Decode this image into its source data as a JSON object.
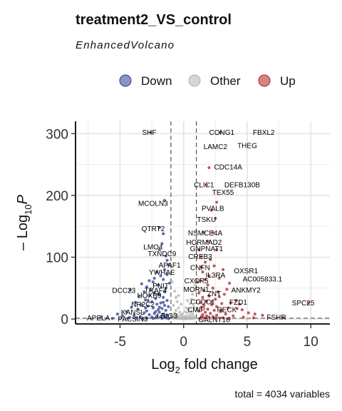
{
  "chart_data": {
    "type": "scatter",
    "title": "treatment2_VS_control",
    "subtitle": "EnhancedVolcano",
    "caption": "total = 4034 variables",
    "xlabel": {
      "main": "Log",
      "sub": "2",
      "rest": " fold change"
    },
    "ylabel": {
      "pre": "– Log",
      "sub": "10",
      "italic": "P"
    },
    "xlim": [
      -8.5,
      11.5
    ],
    "ylim": [
      -8,
      320
    ],
    "xticks": [
      "-5",
      "0",
      "5",
      "10"
    ],
    "xtick_values": [
      -5,
      0,
      5,
      10
    ],
    "yticks": [
      "0",
      "100",
      "200",
      "300"
    ],
    "ytick_values": [
      0,
      100,
      200,
      300
    ],
    "fc_cutoff": 1,
    "p_cutoff_y": 1.3,
    "grid": true,
    "legend_position": "top",
    "legend": [
      {
        "name": "Down",
        "color": "#2a3e8c"
      },
      {
        "name": "Other",
        "color": "#b3b3b3"
      },
      {
        "name": "Up",
        "color": "#b11f24"
      }
    ],
    "labels": [
      {
        "text": "SHF",
        "x": -2.7,
        "y": 302
      },
      {
        "text": "CONG1",
        "x": 3.0,
        "y": 302
      },
      {
        "text": "FBXL2",
        "x": 6.3,
        "y": 302
      },
      {
        "text": "LAMC2",
        "x": 2.5,
        "y": 279
      },
      {
        "text": "THEG",
        "x": 5.0,
        "y": 281
      },
      {
        "text": "CDC14A",
        "x": 3.5,
        "y": 246
      },
      {
        "text": "CLIC1",
        "x": 1.6,
        "y": 217
      },
      {
        "text": "DEFB130B",
        "x": 4.6,
        "y": 217
      },
      {
        "text": "TEX55",
        "x": 3.1,
        "y": 205
      },
      {
        "text": "MCOLN3",
        "x": -2.4,
        "y": 187
      },
      {
        "text": "PVALB",
        "x": 2.3,
        "y": 179
      },
      {
        "text": "TSKU",
        "x": 1.8,
        "y": 161
      },
      {
        "text": "QTRT2",
        "x": -2.4,
        "y": 146
      },
      {
        "text": "NSMCE4A",
        "x": 1.7,
        "y": 139
      },
      {
        "text": "HORMAD2",
        "x": 1.6,
        "y": 124
      },
      {
        "text": "LMO4",
        "x": -2.4,
        "y": 117
      },
      {
        "text": "GNPNAT1",
        "x": 1.8,
        "y": 114
      },
      {
        "text": "TXNDC9",
        "x": -1.7,
        "y": 106
      },
      {
        "text": "CREB3",
        "x": 1.3,
        "y": 101
      },
      {
        "text": "APAF1",
        "x": -1.1,
        "y": 87
      },
      {
        "text": "CNFN",
        "x": 1.3,
        "y": 83
      },
      {
        "text": "OXSR1",
        "x": 4.9,
        "y": 78
      },
      {
        "text": "YWHAE",
        "x": -1.7,
        "y": 76
      },
      {
        "text": "IL3RA",
        "x": 2.5,
        "y": 71
      },
      {
        "text": "AC005833.1",
        "x": 6.2,
        "y": 65
      },
      {
        "text": "CXCR5",
        "x": 1.0,
        "y": 62
      },
      {
        "text": "DCC23",
        "x": -4.7,
        "y": 46
      },
      {
        "text": "TRAF4",
        "x": -2.2,
        "y": 46
      },
      {
        "text": "MORN1",
        "x": 1.0,
        "y": 48
      },
      {
        "text": "ANKMY2",
        "x": 4.9,
        "y": 47
      },
      {
        "text": "ZNT",
        "x": 2.4,
        "y": 41
      },
      {
        "text": "HOXB9",
        "x": -2.7,
        "y": 38
      },
      {
        "text": "PNIT",
        "x": -1.8,
        "y": 54
      },
      {
        "text": "CCDC1",
        "x": 1.5,
        "y": 28
      },
      {
        "text": "FZD1",
        "x": 4.3,
        "y": 27
      },
      {
        "text": "SPC25",
        "x": 9.4,
        "y": 26
      },
      {
        "text": "NR2C2",
        "x": -3.2,
        "y": 24
      },
      {
        "text": "CMIP",
        "x": 1.0,
        "y": 15
      },
      {
        "text": "RECK",
        "x": 3.4,
        "y": 15
      },
      {
        "text": "KANSL",
        "x": -4.0,
        "y": 11
      },
      {
        "text": "LRIG3",
        "x": -1.3,
        "y": 5
      },
      {
        "text": "FSHR",
        "x": 7.3,
        "y": 3
      },
      {
        "text": "APELA",
        "x": -6.7,
        "y": 2
      },
      {
        "text": "PACSIN3",
        "x": -4.0,
        "y": 0
      },
      {
        "text": "GALNT16",
        "x": 2.4,
        "y": -1
      }
    ],
    "points": {
      "down": [
        [
          -2.6,
          302
        ],
        [
          -1.5,
          192
        ],
        [
          -1.9,
          148
        ],
        [
          -1.6,
          138
        ],
        [
          -1.7,
          122
        ],
        [
          -1.9,
          112
        ],
        [
          -1.4,
          102
        ],
        [
          -1.3,
          95
        ],
        [
          -1.2,
          88
        ],
        [
          -1.5,
          80
        ],
        [
          -2.1,
          76
        ],
        [
          -1.8,
          70
        ],
        [
          -1.6,
          64
        ],
        [
          -2.4,
          60
        ],
        [
          -2.0,
          55
        ],
        [
          -2.9,
          52
        ],
        [
          -1.4,
          50
        ],
        [
          -4.2,
          47
        ],
        [
          -3.1,
          44
        ],
        [
          -2.3,
          42
        ],
        [
          -1.9,
          40
        ],
        [
          -2.7,
          38
        ],
        [
          -3.5,
          36
        ],
        [
          -1.6,
          35
        ],
        [
          -2.2,
          33
        ],
        [
          -3.0,
          31
        ],
        [
          -1.3,
          30
        ],
        [
          -2.5,
          28
        ],
        [
          -3.8,
          27
        ],
        [
          -1.8,
          26
        ],
        [
          -2.1,
          24
        ],
        [
          -3.3,
          23
        ],
        [
          -1.5,
          22
        ],
        [
          -2.8,
          21
        ],
        [
          -1.2,
          20
        ],
        [
          -4.1,
          19
        ],
        [
          -2.4,
          18
        ],
        [
          -1.7,
          17
        ],
        [
          -3.6,
          16
        ],
        [
          -2.0,
          15
        ],
        [
          -1.4,
          14
        ],
        [
          -2.9,
          13
        ],
        [
          -4.5,
          12
        ],
        [
          -1.9,
          11
        ],
        [
          -3.1,
          10
        ],
        [
          -2.3,
          9
        ],
        [
          -1.6,
          8
        ],
        [
          -5.2,
          8
        ],
        [
          -2.7,
          7
        ],
        [
          -3.9,
          6
        ],
        [
          -1.3,
          6
        ],
        [
          -2.1,
          5
        ],
        [
          -4.8,
          5
        ],
        [
          -1.8,
          4
        ],
        [
          -3.4,
          4
        ],
        [
          -2.5,
          3
        ],
        [
          -1.5,
          3
        ],
        [
          -6.5,
          3
        ],
        [
          -2.2,
          2
        ],
        [
          -3.7,
          2
        ],
        [
          -1.4,
          2
        ],
        [
          -4.3,
          1.5
        ],
        [
          -2.9,
          1.5
        ],
        [
          -1.7,
          1
        ],
        [
          -5.6,
          1
        ],
        [
          -2.4,
          1
        ],
        [
          -3.2,
          0.5
        ],
        [
          -1.2,
          0.5
        ],
        [
          -2.0,
          40
        ],
        [
          -2.6,
          47
        ],
        [
          -1.1,
          58
        ],
        [
          -1.3,
          72
        ],
        [
          -2.3,
          66
        ],
        [
          -3.3,
          57
        ],
        [
          -2.8,
          30
        ],
        [
          -1.9,
          19
        ],
        [
          -2.2,
          12
        ],
        [
          -1.6,
          27
        ],
        [
          -3.0,
          18
        ],
        [
          -1.5,
          44
        ],
        [
          -2.7,
          62
        ]
      ],
      "up": [
        [
          2.9,
          302
        ],
        [
          2.0,
          245
        ],
        [
          1.8,
          217
        ],
        [
          2.6,
          189
        ],
        [
          2.2,
          176
        ],
        [
          2.5,
          163
        ],
        [
          1.6,
          140
        ],
        [
          2.3,
          140
        ],
        [
          1.9,
          126
        ],
        [
          2.6,
          112
        ],
        [
          1.4,
          101
        ],
        [
          1.7,
          92
        ],
        [
          2.4,
          86
        ],
        [
          3.1,
          80
        ],
        [
          1.5,
          76
        ],
        [
          2.0,
          70
        ],
        [
          2.8,
          66
        ],
        [
          1.3,
          62
        ],
        [
          3.6,
          58
        ],
        [
          1.9,
          55
        ],
        [
          2.3,
          50
        ],
        [
          1.6,
          46
        ],
        [
          2.7,
          44
        ],
        [
          1.2,
          42
        ],
        [
          3.2,
          40
        ],
        [
          2.0,
          37
        ],
        [
          1.5,
          35
        ],
        [
          2.5,
          32
        ],
        [
          4.1,
          30
        ],
        [
          1.8,
          29
        ],
        [
          1.3,
          27
        ],
        [
          3.0,
          25
        ],
        [
          2.2,
          23
        ],
        [
          1.6,
          22
        ],
        [
          2.6,
          20
        ],
        [
          1.4,
          19
        ],
        [
          3.5,
          18
        ],
        [
          1.9,
          16
        ],
        [
          4.6,
          15
        ],
        [
          2.4,
          14
        ],
        [
          1.2,
          13
        ],
        [
          2.9,
          12
        ],
        [
          1.7,
          11
        ],
        [
          5.1,
          10
        ],
        [
          2.1,
          9
        ],
        [
          3.3,
          8
        ],
        [
          1.5,
          7
        ],
        [
          2.6,
          6
        ],
        [
          6.2,
          6
        ],
        [
          1.8,
          5
        ],
        [
          3.9,
          5
        ],
        [
          2.3,
          4
        ],
        [
          1.4,
          4
        ],
        [
          4.7,
          3
        ],
        [
          2.0,
          3
        ],
        [
          3.1,
          2
        ],
        [
          1.6,
          2
        ],
        [
          5.5,
          2
        ],
        [
          2.5,
          1.5
        ],
        [
          1.3,
          1
        ],
        [
          3.6,
          1
        ],
        [
          7.8,
          2
        ],
        [
          9.8,
          26
        ],
        [
          4.4,
          24
        ],
        [
          5.6,
          8
        ],
        [
          1.1,
          60
        ],
        [
          1.4,
          84
        ],
        [
          2.1,
          96
        ],
        [
          1.2,
          112
        ],
        [
          3.7,
          26
        ],
        [
          4.2,
          17
        ],
        [
          2.8,
          36
        ],
        [
          3.4,
          48
        ],
        [
          1.7,
          64
        ],
        [
          2.2,
          28
        ],
        [
          3.0,
          14
        ]
      ],
      "other": [
        [
          -0.9,
          60
        ],
        [
          -0.7,
          45
        ],
        [
          -0.6,
          35
        ],
        [
          -0.5,
          28
        ],
        [
          -0.8,
          22
        ],
        [
          -0.4,
          18
        ],
        [
          -0.6,
          14
        ],
        [
          -0.3,
          11
        ],
        [
          -0.7,
          9
        ],
        [
          -0.5,
          7
        ],
        [
          -0.2,
          6
        ],
        [
          -0.8,
          5
        ],
        [
          -0.4,
          4
        ],
        [
          -0.6,
          3
        ],
        [
          -0.1,
          2
        ],
        [
          -0.9,
          2
        ],
        [
          -0.3,
          1.5
        ],
        [
          -0.7,
          1
        ],
        [
          -0.5,
          0.6
        ],
        [
          -0.2,
          0.3
        ],
        [
          0.9,
          55
        ],
        [
          0.7,
          40
        ],
        [
          0.6,
          32
        ],
        [
          0.5,
          25
        ],
        [
          0.8,
          20
        ],
        [
          0.4,
          16
        ],
        [
          0.6,
          12
        ],
        [
          0.3,
          10
        ],
        [
          0.7,
          8
        ],
        [
          0.5,
          6
        ],
        [
          0.2,
          5
        ],
        [
          0.8,
          4
        ],
        [
          0.4,
          3
        ],
        [
          0.6,
          2.5
        ],
        [
          0.1,
          2
        ],
        [
          0.9,
          1.5
        ],
        [
          0.3,
          1
        ],
        [
          0.7,
          0.8
        ],
        [
          0.5,
          0.4
        ],
        [
          0.2,
          0.2
        ],
        [
          0.0,
          3
        ],
        [
          -0.1,
          8
        ],
        [
          0.1,
          12
        ],
        [
          0.2,
          18
        ],
        [
          -0.2,
          24
        ],
        [
          0.3,
          30
        ],
        [
          -0.4,
          38
        ],
        [
          0.0,
          0.5
        ],
        [
          -3.0,
          0.8
        ],
        [
          3.5,
          0.6
        ],
        [
          -5.0,
          0.4
        ],
        [
          5.0,
          0.5
        ],
        [
          -2.0,
          0.9
        ],
        [
          2.2,
          0.7
        ]
      ]
    }
  }
}
